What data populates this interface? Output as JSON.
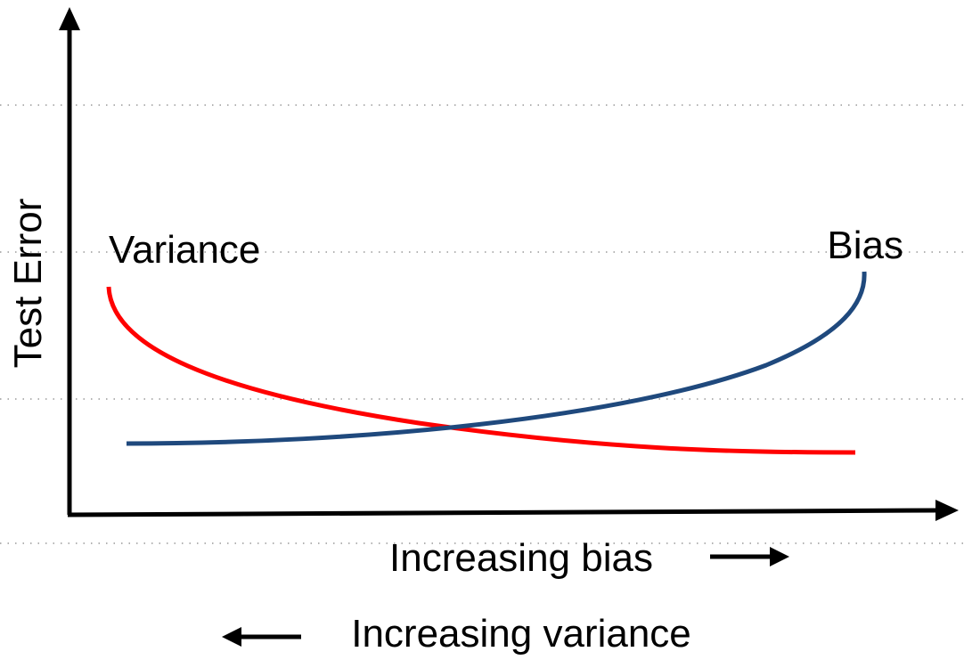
{
  "diagram": {
    "y_axis_label": "Test Error",
    "x_axis_label_bias": "Increasing bias",
    "x_axis_label_variance": "Increasing variance",
    "curves": [
      {
        "label": "Variance",
        "color": "#ff0000"
      },
      {
        "label": "Bias",
        "color": "#1f497d"
      }
    ],
    "axis_color": "#000000",
    "grid": "dotted"
  }
}
